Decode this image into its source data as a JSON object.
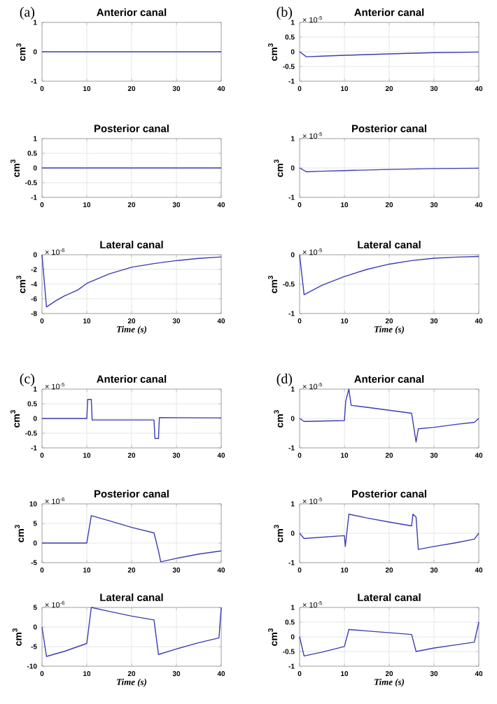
{
  "chart_data": [
    {
      "type": "line",
      "title": "Anterior canal",
      "ylabel": "cm$^{3}$",
      "x": [
        0,
        40
      ],
      "values": [
        0,
        0
      ],
      "color": "#3c3cb4",
      "xlim": [
        0,
        40
      ],
      "ylim": [
        -1,
        1
      ],
      "xticks": [
        0,
        10,
        20,
        30,
        40
      ],
      "yticks": [
        -1,
        0,
        1
      ],
      "grid": true,
      "annotations": [
        "(a)"
      ]
    },
    {
      "type": "line",
      "title": "Posterior canal",
      "ylabel": "cm$^{3}$",
      "x": [
        0,
        40
      ],
      "values": [
        0,
        0
      ],
      "color": "#3c3cb4",
      "xlim": [
        0,
        40
      ],
      "ylim": [
        -1,
        1
      ],
      "xticks": [
        0,
        10,
        20,
        30,
        40
      ],
      "yticks": [
        -1,
        -0.5,
        0,
        0.5,
        1
      ],
      "grid": true
    },
    {
      "type": "line",
      "title": "Lateral canal",
      "xlabel": "Time (s)",
      "ylabel": "cm$^{3}$",
      "x": [
        0,
        1,
        3,
        5,
        8,
        10,
        15,
        20,
        25,
        30,
        35,
        40
      ],
      "values": [
        0,
        -7.1,
        -6.3,
        -5.6,
        -4.8,
        -3.9,
        -2.6,
        -1.7,
        -1.2,
        -0.8,
        -0.5,
        -0.3
      ],
      "color": "#3c3cb4",
      "xlim": [
        0,
        40
      ],
      "ylim": [
        -8,
        0
      ],
      "xticks": [
        0,
        10,
        20,
        30,
        40
      ],
      "yticks": [
        -8,
        -6,
        -4,
        -2,
        0
      ],
      "grid": true,
      "annotations": [
        "× 10$^{-6}$"
      ]
    },
    {
      "type": "line",
      "title": "Anterior canal",
      "ylabel": "cm$^{3}$",
      "x": [
        0,
        1.5,
        5,
        10,
        20,
        30,
        40
      ],
      "values": [
        0,
        -0.17,
        -0.15,
        -0.12,
        -0.07,
        -0.03,
        -0.01
      ],
      "color": "#3c3cb4",
      "xlim": [
        0,
        40
      ],
      "ylim": [
        -1,
        1
      ],
      "xticks": [
        0,
        10,
        20,
        30,
        40
      ],
      "yticks": [
        -1,
        -0.5,
        0,
        0.5,
        1
      ],
      "grid": true,
      "annotations": [
        "(b)",
        "× 10$^{-5}$"
      ]
    },
    {
      "type": "line",
      "title": "Posterior canal",
      "ylabel": "cm$^{3}$",
      "x": [
        0,
        1.5,
        5,
        10,
        20,
        30,
        40
      ],
      "values": [
        0,
        -0.13,
        -0.11,
        -0.09,
        -0.05,
        -0.02,
        -0.01
      ],
      "color": "#3c3cb4",
      "xlim": [
        0,
        40
      ],
      "ylim": [
        -1,
        1
      ],
      "xticks": [
        0,
        10,
        20,
        30,
        40
      ],
      "yticks": [
        -1,
        0,
        1
      ],
      "grid": true,
      "annotations": [
        "× 10$^{-5}$"
      ]
    },
    {
      "type": "line",
      "title": "Lateral canal",
      "xlabel": "Time (s)",
      "ylabel": "cm$^{3}$",
      "x": [
        0,
        1,
        3,
        5,
        10,
        15,
        20,
        25,
        30,
        35,
        40
      ],
      "values": [
        0,
        -0.68,
        -0.6,
        -0.52,
        -0.37,
        -0.25,
        -0.16,
        -0.1,
        -0.06,
        -0.04,
        -0.03
      ],
      "color": "#3c3cb4",
      "xlim": [
        0,
        40
      ],
      "ylim": [
        -1,
        0
      ],
      "xticks": [
        0,
        10,
        20,
        30,
        40
      ],
      "yticks": [
        -1,
        -0.5,
        0
      ],
      "grid": true,
      "annotations": [
        "× 10$^{-5}$"
      ]
    },
    {
      "type": "line",
      "title": "Anterior canal",
      "ylabel": "cm$^{3}$",
      "x": [
        0,
        10,
        10.2,
        11,
        11.2,
        25,
        25.2,
        26,
        26.2,
        40
      ],
      "values": [
        0,
        0,
        0.65,
        0.65,
        -0.05,
        -0.05,
        -0.68,
        -0.68,
        0.03,
        0.02
      ],
      "color": "#3c3cb4",
      "xlim": [
        0,
        40
      ],
      "ylim": [
        -1,
        1
      ],
      "xticks": [
        0,
        10,
        20,
        30,
        40
      ],
      "yticks": [
        -1,
        -0.5,
        0,
        0.5,
        1
      ],
      "grid": true,
      "annotations": [
        "(c)",
        "× 10$^{-5}$"
      ]
    },
    {
      "type": "line",
      "title": "Posterior canal",
      "ylabel": "cm$^{3}$",
      "x": [
        0,
        10,
        11,
        15,
        20,
        25,
        26,
        26.5,
        30,
        35,
        40
      ],
      "values": [
        0,
        0,
        7,
        5.7,
        4,
        2.6,
        -2,
        -4.8,
        -3.9,
        -2.8,
        -2
      ],
      "color": "#3c3cb4",
      "xlim": [
        0,
        40
      ],
      "ylim": [
        -5,
        10
      ],
      "xticks": [
        0,
        10,
        20,
        30,
        40
      ],
      "yticks": [
        -5,
        0,
        5,
        10
      ],
      "grid": true,
      "annotations": [
        "× 10$^{-6}$"
      ]
    },
    {
      "type": "line",
      "title": "Lateral canal",
      "xlabel": "Time (s)",
      "ylabel": "cm$^{3}$",
      "x": [
        0,
        1,
        5,
        10,
        11,
        15,
        20,
        25,
        26,
        30,
        35,
        39.5,
        40
      ],
      "values": [
        0,
        -7.5,
        -6.2,
        -4.2,
        5,
        4,
        2.8,
        1.8,
        -7,
        -5.6,
        -4,
        -2.8,
        5
      ],
      "color": "#3c3cb4",
      "xlim": [
        0,
        40
      ],
      "ylim": [
        -10,
        5
      ],
      "xticks": [
        0,
        10,
        20,
        30,
        40
      ],
      "yticks": [
        -10,
        -5,
        0,
        5
      ],
      "grid": true,
      "annotations": [
        "× 10$^{-6}$"
      ]
    },
    {
      "type": "line",
      "title": "Anterior canal",
      "ylabel": "cm$^{3}$",
      "x": [
        0,
        1,
        10,
        10.3,
        11,
        11.5,
        15,
        20,
        25,
        26,
        26.5,
        30,
        35,
        39,
        40
      ],
      "values": [
        0,
        -0.1,
        -0.07,
        0.6,
        1,
        0.45,
        0.38,
        0.28,
        0.18,
        -0.8,
        -0.35,
        -0.3,
        -0.2,
        -0.13,
        0
      ],
      "color": "#3c3cb4",
      "xlim": [
        0,
        40
      ],
      "ylim": [
        -1,
        1
      ],
      "xticks": [
        0,
        10,
        20,
        30,
        40
      ],
      "yticks": [
        -1,
        0,
        1
      ],
      "grid": true,
      "annotations": [
        "(d)",
        "× 10$^{-5}$"
      ]
    },
    {
      "type": "line",
      "title": "Posterior canal",
      "ylabel": "cm$^{3}$",
      "x": [
        0,
        1,
        10,
        10.2,
        11,
        15,
        20,
        25,
        25.3,
        26,
        26.5,
        30,
        35,
        39,
        40
      ],
      "values": [
        0,
        -0.18,
        -0.08,
        -0.45,
        0.65,
        0.52,
        0.38,
        0.25,
        0.65,
        0.55,
        -0.55,
        -0.45,
        -0.32,
        -0.2,
        0
      ],
      "color": "#3c3cb4",
      "xlim": [
        0,
        40
      ],
      "ylim": [
        -1,
        1
      ],
      "xticks": [
        0,
        10,
        20,
        30,
        40
      ],
      "yticks": [
        -1,
        0,
        1
      ],
      "grid": true,
      "annotations": [
        "× 10$^{-5}$"
      ]
    },
    {
      "type": "line",
      "title": "Lateral canal",
      "xlabel": "Time (s)",
      "ylabel": "cm$^{3}$",
      "x": [
        0,
        1,
        5,
        10,
        11,
        15,
        20,
        25,
        26,
        30,
        35,
        39,
        40
      ],
      "values": [
        0,
        -0.65,
        -0.52,
        -0.33,
        0.25,
        0.2,
        0.14,
        0.08,
        -0.5,
        -0.38,
        -0.27,
        -0.18,
        0.5
      ],
      "color": "#3c3cb4",
      "xlim": [
        0,
        40
      ],
      "ylim": [
        -1,
        1
      ],
      "xticks": [
        0,
        10,
        20,
        30,
        40
      ],
      "yticks": [
        -1,
        -0.5,
        0,
        0.5,
        1
      ],
      "grid": true,
      "annotations": [
        "× 10$^{-5}$"
      ]
    }
  ]
}
